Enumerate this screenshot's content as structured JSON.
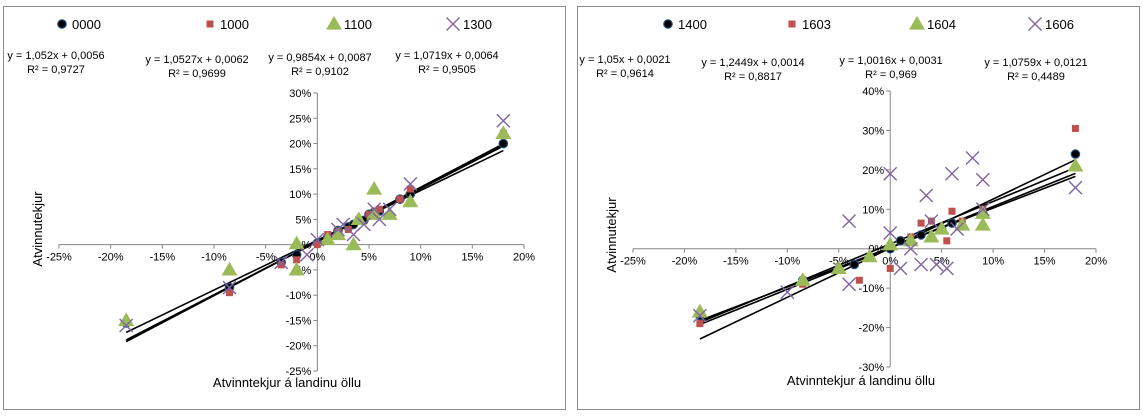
{
  "chart_data": [
    {
      "type": "scatter",
      "title": "",
      "xlabel": "Atvinntekjur á landinu öllu",
      "ylabel": "Atvinnutekjur",
      "xlim": [
        -0.25,
        0.2
      ],
      "ylim": [
        -0.25,
        0.3
      ],
      "x_ticks": [
        "-25%",
        "-20%",
        "-15%",
        "-10%",
        "-5%",
        "0%",
        "5%",
        "10%",
        "15%",
        "20%"
      ],
      "y_ticks": [
        "-25%",
        "-20%",
        "-15%",
        "-10%",
        "-5%",
        "0%",
        "5%",
        "10%",
        "15%",
        "20%",
        "25%",
        "30%"
      ],
      "legend_position": "top",
      "series": [
        {
          "name": "0000",
          "marker": "circle",
          "color": "#000000",
          "slope": 1.052,
          "intercept": 0.0056,
          "equation": "y = 1,052x + 0,0056",
          "r2": "R² = 0,9727",
          "points": [
            [
              -0.185,
              -0.155
            ],
            [
              -0.085,
              -0.085
            ],
            [
              -0.035,
              -0.035
            ],
            [
              -0.02,
              -0.02
            ],
            [
              0.0,
              0.003
            ],
            [
              0.01,
              0.014
            ],
            [
              0.02,
              0.028
            ],
            [
              0.03,
              0.035
            ],
            [
              0.035,
              0.04
            ],
            [
              0.045,
              0.048
            ],
            [
              0.05,
              0.06
            ],
            [
              0.055,
              0.064
            ],
            [
              0.06,
              0.066
            ],
            [
              0.08,
              0.09
            ],
            [
              0.09,
              0.1
            ],
            [
              0.18,
              0.2
            ]
          ]
        },
        {
          "name": "1000",
          "marker": "square",
          "color": "#c0504d",
          "slope": 1.0527,
          "intercept": 0.0062,
          "equation": "y = 1,0527x + 0,0062",
          "r2": "R² = 0,9699",
          "points": [
            [
              -0.085,
              -0.095
            ],
            [
              -0.035,
              -0.04
            ],
            [
              -0.02,
              -0.03
            ],
            [
              0.0,
              0.0
            ],
            [
              0.01,
              0.02
            ],
            [
              0.02,
              0.025
            ],
            [
              0.03,
              0.03
            ],
            [
              0.04,
              0.05
            ],
            [
              0.05,
              0.06
            ],
            [
              0.06,
              0.07
            ],
            [
              0.08,
              0.09
            ],
            [
              0.09,
              0.11
            ],
            [
              0.18,
              0.22
            ]
          ]
        },
        {
          "name": "1100",
          "marker": "triangle",
          "color": "#9bbb59",
          "slope": 0.9854,
          "intercept": 0.0087,
          "equation": "y = 0,9854x + 0,0087",
          "r2": "R² = 0,9102",
          "points": [
            [
              -0.185,
              -0.15
            ],
            [
              -0.085,
              -0.05
            ],
            [
              -0.02,
              -0.05
            ],
            [
              -0.02,
              0.002
            ],
            [
              0.01,
              0.01
            ],
            [
              0.02,
              0.02
            ],
            [
              0.035,
              0.0
            ],
            [
              0.04,
              0.05
            ],
            [
              0.055,
              0.11
            ],
            [
              0.055,
              0.06
            ],
            [
              0.07,
              0.06
            ],
            [
              0.09,
              0.085
            ],
            [
              0.18,
              0.22
            ]
          ]
        },
        {
          "name": "1300",
          "marker": "x",
          "color": "#8064a2",
          "slope": 1.0719,
          "intercept": 0.0064,
          "equation": "y = 1,0719x + 0,0064",
          "r2": "R² = 0,9505",
          "points": [
            [
              -0.185,
              -0.16
            ],
            [
              -0.085,
              -0.085
            ],
            [
              -0.035,
              -0.035
            ],
            [
              -0.01,
              -0.02
            ],
            [
              0.0,
              0.01
            ],
            [
              0.02,
              0.03
            ],
            [
              0.025,
              0.04
            ],
            [
              0.035,
              0.02
            ],
            [
              0.045,
              0.04
            ],
            [
              0.055,
              0.07
            ],
            [
              0.06,
              0.05
            ],
            [
              0.07,
              0.07
            ],
            [
              0.09,
              0.12
            ],
            [
              0.18,
              0.245
            ]
          ]
        }
      ]
    },
    {
      "type": "scatter",
      "title": "",
      "xlabel": "Atvinntekjur á landinu öllu",
      "ylabel": "Atvinnutekjur",
      "xlim": [
        -0.25,
        0.2
      ],
      "ylim": [
        -0.3,
        0.4
      ],
      "x_ticks": [
        "-25%",
        "-20%",
        "-15%",
        "-10%",
        "-5%",
        "0%",
        "5%",
        "10%",
        "15%",
        "20%"
      ],
      "y_ticks": [
        "-30%",
        "-20%",
        "-10%",
        "0%",
        "10%",
        "20%",
        "30%",
        "40%"
      ],
      "legend_position": "top",
      "series": [
        {
          "name": "1400",
          "marker": "circle",
          "color": "#000000",
          "slope": 1.05,
          "intercept": 0.0021,
          "equation": "y = 1,05x + 0,0021",
          "r2": "R² = 0,9614",
          "points": [
            [
              -0.185,
              -0.17
            ],
            [
              -0.085,
              -0.08
            ],
            [
              -0.035,
              -0.04
            ],
            [
              0.0,
              0.0
            ],
            [
              0.01,
              0.02
            ],
            [
              0.03,
              0.035
            ],
            [
              0.05,
              0.05
            ],
            [
              0.06,
              0.065
            ],
            [
              0.09,
              0.09
            ],
            [
              0.18,
              0.24
            ]
          ]
        },
        {
          "name": "1603",
          "marker": "square",
          "color": "#c0504d",
          "slope": 1.2449,
          "intercept": 0.0014,
          "equation": "y = 1,2449x + 0,0014",
          "r2": "R² = 0,8817",
          "points": [
            [
              -0.185,
              -0.19
            ],
            [
              -0.085,
              -0.09
            ],
            [
              -0.03,
              -0.08
            ],
            [
              0.0,
              -0.05
            ],
            [
              0.02,
              0.03
            ],
            [
              0.03,
              0.065
            ],
            [
              0.04,
              0.07
            ],
            [
              0.055,
              0.02
            ],
            [
              0.06,
              0.095
            ],
            [
              0.07,
              0.07
            ],
            [
              0.09,
              0.1
            ],
            [
              0.18,
              0.305
            ]
          ]
        },
        {
          "name": "1604",
          "marker": "triangle",
          "color": "#9bbb59",
          "slope": 1.0016,
          "intercept": 0.0031,
          "equation": "y = 1,0016x + 0,0031",
          "r2": "R² = 0,969",
          "points": [
            [
              -0.185,
              -0.16
            ],
            [
              -0.085,
              -0.08
            ],
            [
              -0.05,
              -0.05
            ],
            [
              -0.02,
              -0.02
            ],
            [
              0.0,
              0.01
            ],
            [
              0.02,
              0.02
            ],
            [
              0.04,
              0.03
            ],
            [
              0.05,
              0.05
            ],
            [
              0.07,
              0.06
            ],
            [
              0.09,
              0.06
            ],
            [
              0.09,
              0.09
            ],
            [
              0.18,
              0.21
            ]
          ]
        },
        {
          "name": "1606",
          "marker": "x",
          "color": "#8064a2",
          "slope": 1.0759,
          "intercept": 0.0121,
          "equation": "y = 1,0759x + 0,0121",
          "r2": "R² = 0,4489",
          "points": [
            [
              -0.185,
              -0.17
            ],
            [
              -0.1,
              -0.11
            ],
            [
              -0.04,
              -0.09
            ],
            [
              -0.04,
              0.07
            ],
            [
              0.0,
              0.19
            ],
            [
              0.0,
              0.04
            ],
            [
              0.01,
              -0.05
            ],
            [
              0.02,
              0.0
            ],
            [
              0.03,
              -0.04
            ],
            [
              0.035,
              0.135
            ],
            [
              0.04,
              0.07
            ],
            [
              0.045,
              -0.04
            ],
            [
              0.055,
              -0.05
            ],
            [
              0.06,
              0.19
            ],
            [
              0.065,
              0.05
            ],
            [
              0.08,
              0.23
            ],
            [
              0.09,
              0.175
            ],
            [
              0.09,
              0.1
            ],
            [
              0.18,
              0.155
            ]
          ]
        }
      ]
    }
  ]
}
